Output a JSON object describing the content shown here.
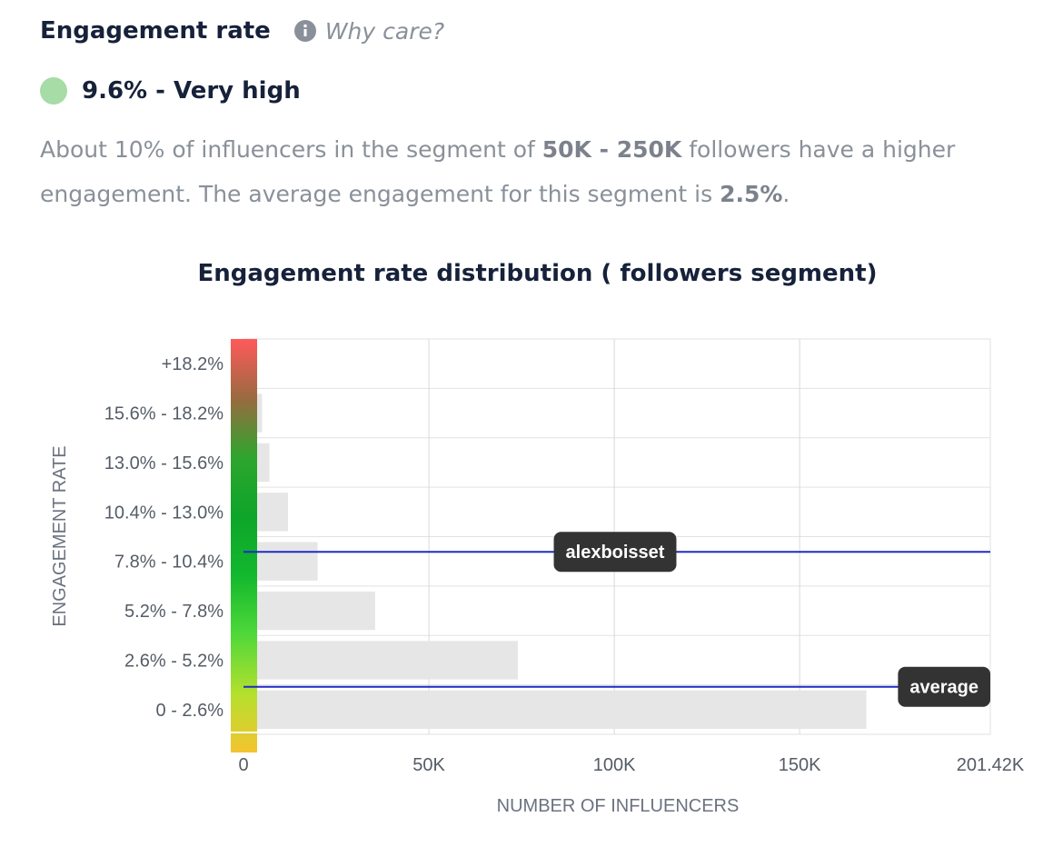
{
  "header": {
    "title": "Engagement rate",
    "info_icon": "info-icon",
    "why_label": "Why care?"
  },
  "rate": {
    "value_text": "9.6% - Very high",
    "indicator_color": "#a6dca6"
  },
  "description": {
    "part1": "About 10% of influencers in the segment of ",
    "segment": "50K - 250K",
    "part2": " followers have a higher engagement. The average engagement for this segment is ",
    "average": "2.5%",
    "part3": "."
  },
  "chart_data": {
    "type": "bar",
    "orientation": "horizontal",
    "title": "Engagement rate distribution ( followers segment)",
    "xlabel": "NUMBER OF INFLUENCERS",
    "ylabel": "ENGAGEMENT RATE",
    "categories": [
      "+18.2%",
      "15.6% - 18.2%",
      "13.0% - 15.6%",
      "10.4% - 13.0%",
      "7.8% - 10.4%",
      "5.2% - 7.8%",
      "2.6% - 5.2%",
      "0 - 2.6%"
    ],
    "values": [
      0,
      5000,
      7000,
      12000,
      20000,
      35500,
      74000,
      168000
    ],
    "xlim": [
      0,
      201420
    ],
    "xticks": [
      0,
      50000,
      100000,
      150000,
      201420
    ],
    "xtick_labels": [
      "0",
      "50K",
      "100K",
      "150K",
      "201.42K"
    ],
    "grid": true,
    "bar_color": "#e6e6e6",
    "markers": [
      {
        "label": "alexboisset",
        "engagement": 9.6,
        "color": "#1f2bc4"
      },
      {
        "label": "average",
        "engagement": 2.5,
        "color": "#1f2bc4"
      }
    ],
    "gradient_colors": [
      "#f4c430",
      "#b3e02e",
      "#4fd83a",
      "#12b82d",
      "#0ea52a",
      "#2ea52e",
      "#9a6a40",
      "#ff5a5a"
    ]
  }
}
